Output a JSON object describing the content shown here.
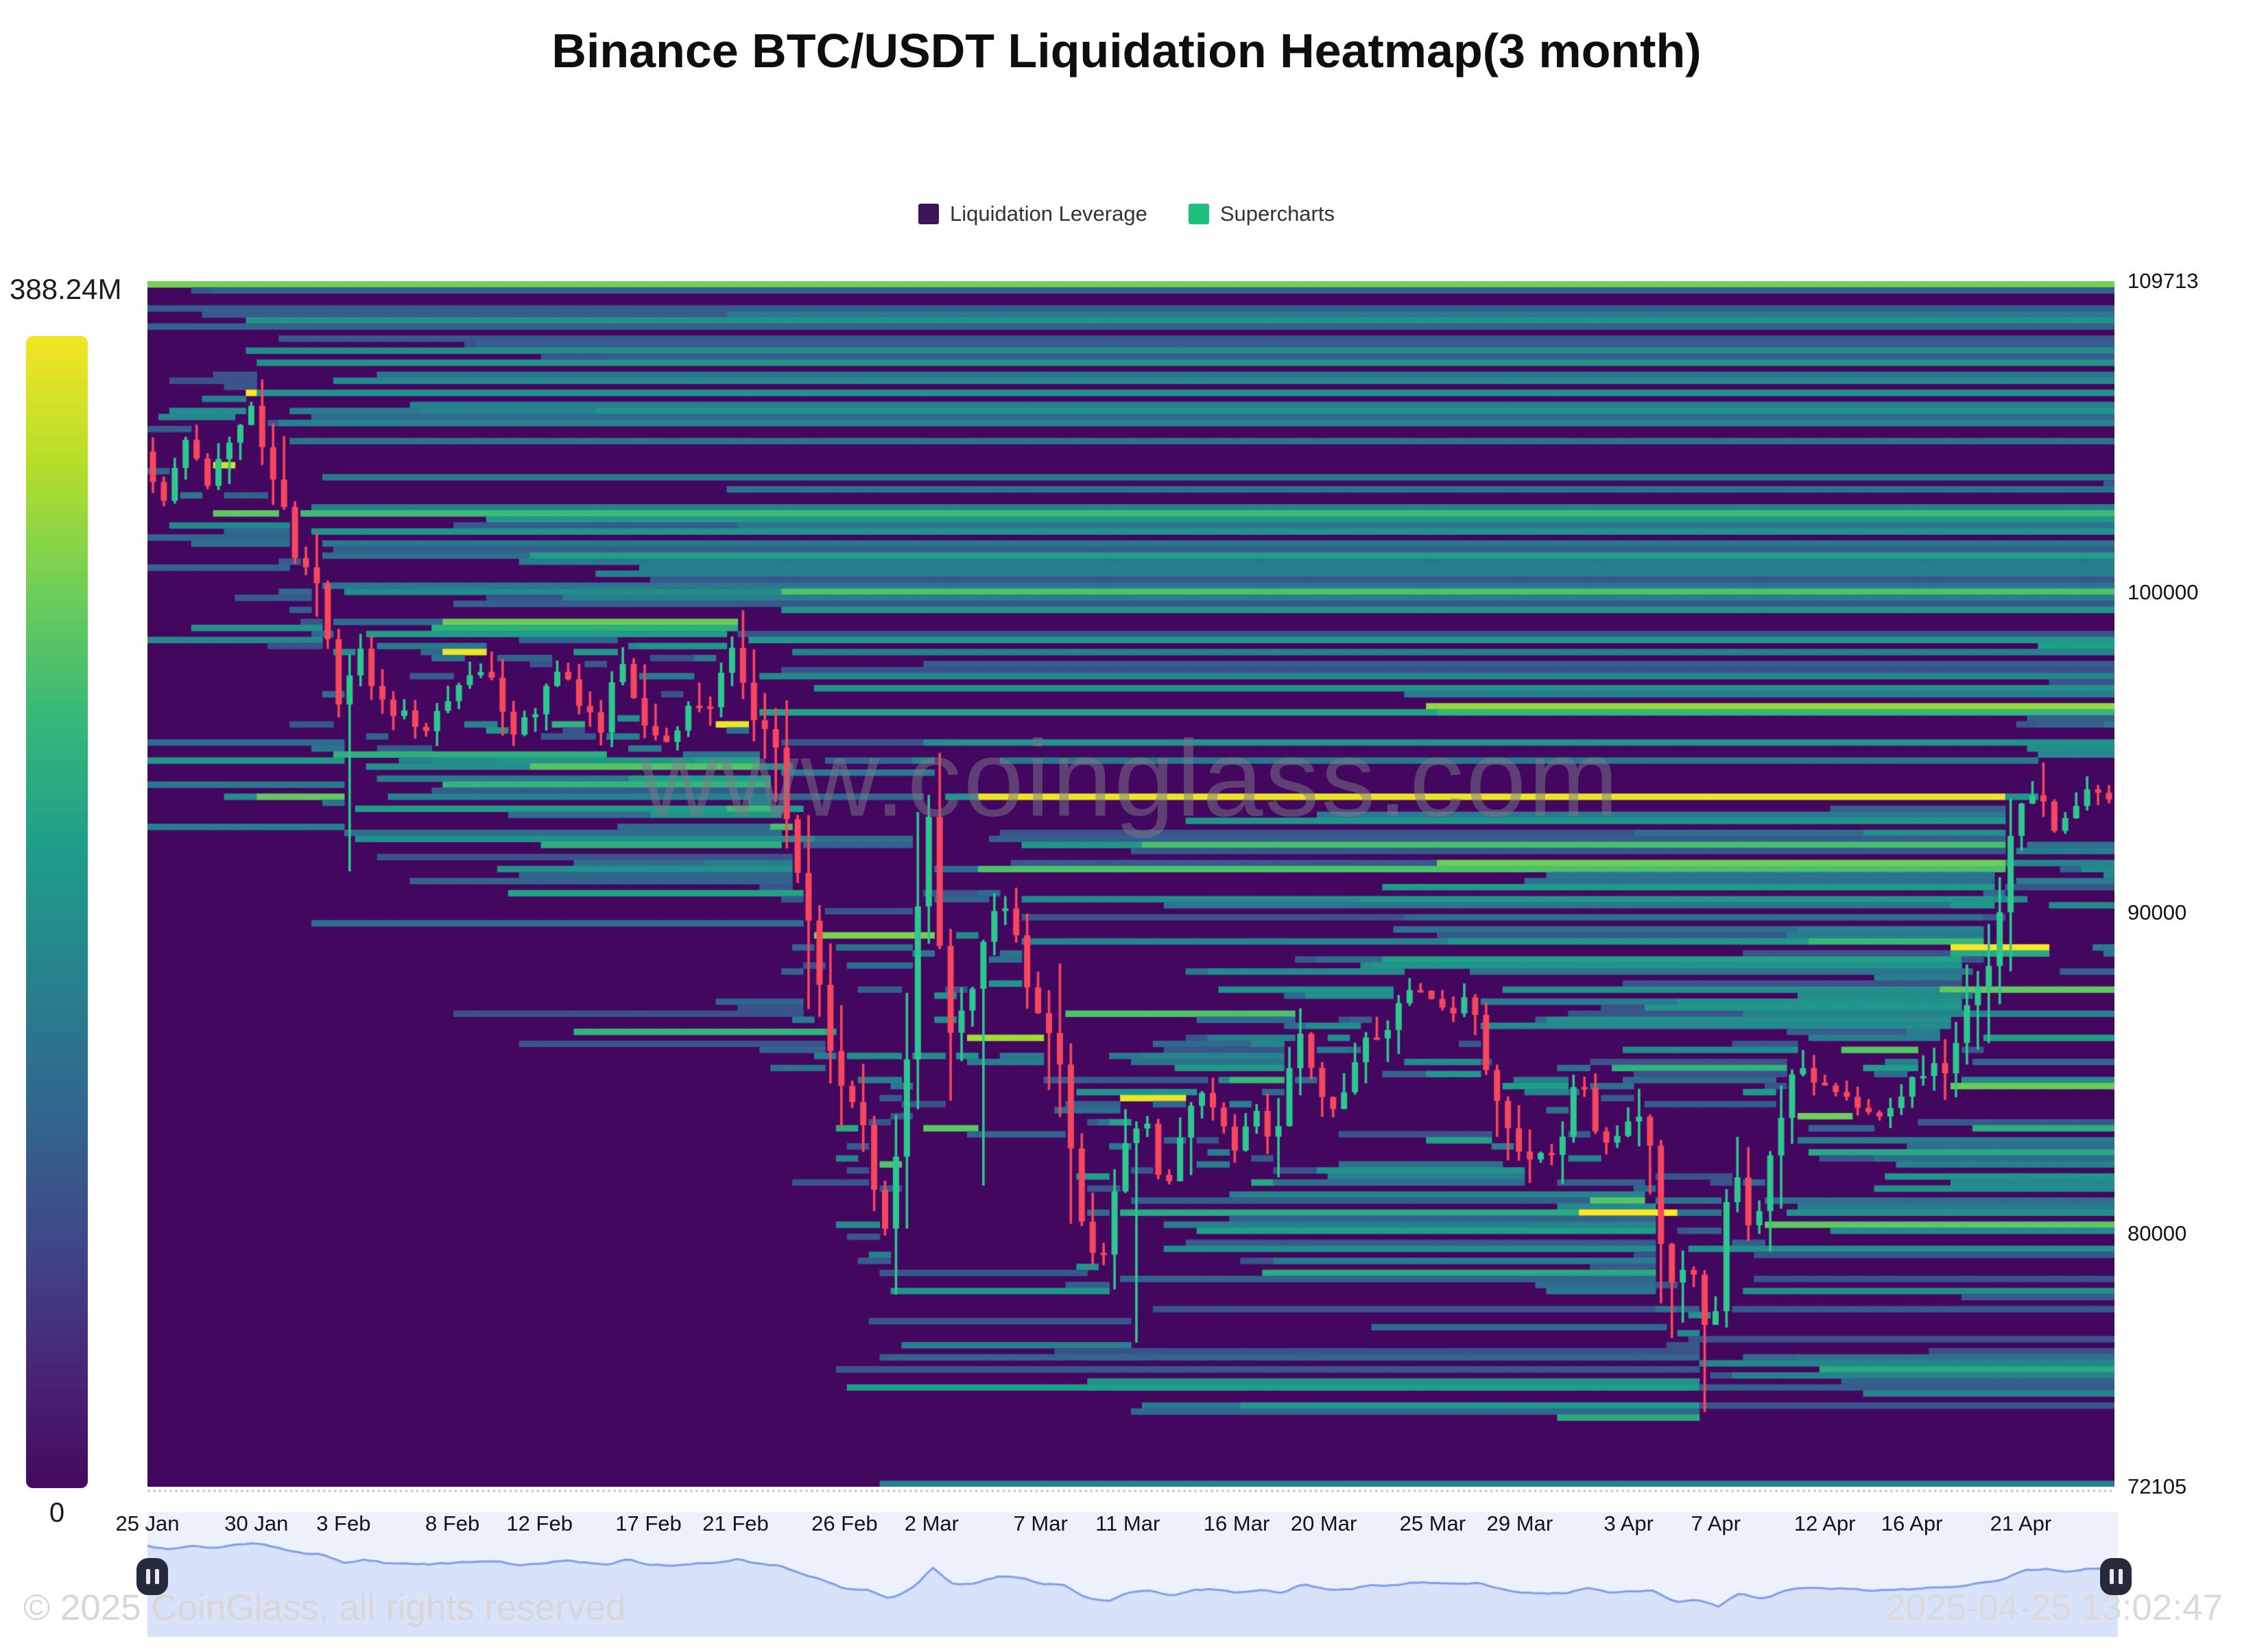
{
  "title": "Binance BTC/USDT Liquidation Heatmap(3 month)",
  "legend": {
    "items": [
      {
        "label": "Liquidation Leverage",
        "color": "#3d1458"
      },
      {
        "label": "Supercharts",
        "color": "#1fc07c"
      }
    ]
  },
  "colorbar": {
    "max_label": "388.24M",
    "min_label": "0"
  },
  "watermark": "www.coinglass.com",
  "footer": {
    "copyright": "© 2025 CoinGlass, all rights reserved",
    "timestamp": "2025-04-25 13:02:47"
  },
  "chart_data": {
    "type": "heatmap",
    "title": "Binance BTC/USDT Liquidation Heatmap(3 month)",
    "palette": "viridis",
    "colorbar_max_label": "388.24M",
    "colorbar_min_label": "0",
    "y_range": [
      72105,
      109713
    ],
    "x_range_days": [
      0,
      90.3
    ],
    "candle_up_color": "#2dc88f",
    "candle_down_color": "#f5475d",
    "y_ticks": [
      {
        "label": "109713",
        "value": 109713
      },
      {
        "label": "100000",
        "value": 100000
      },
      {
        "label": "90000",
        "value": 90000
      },
      {
        "label": "80000",
        "value": 80000
      },
      {
        "label": "72105",
        "value": 72105
      }
    ],
    "x_ticks": [
      {
        "label": "25 Jan",
        "day": 0
      },
      {
        "label": "30 Jan",
        "day": 5
      },
      {
        "label": "3 Feb",
        "day": 9
      },
      {
        "label": "8 Feb",
        "day": 14
      },
      {
        "label": "12 Feb",
        "day": 18
      },
      {
        "label": "17 Feb",
        "day": 23
      },
      {
        "label": "21 Feb",
        "day": 27
      },
      {
        "label": "26 Feb",
        "day": 32
      },
      {
        "label": "2 Mar",
        "day": 36
      },
      {
        "label": "7 Mar",
        "day": 41
      },
      {
        "label": "11 Mar",
        "day": 45
      },
      {
        "label": "16 Mar",
        "day": 50
      },
      {
        "label": "20 Mar",
        "day": 54
      },
      {
        "label": "25 Mar",
        "day": 59
      },
      {
        "label": "29 Mar",
        "day": 63
      },
      {
        "label": "3 Apr",
        "day": 68
      },
      {
        "label": "7 Apr",
        "day": 72
      },
      {
        "label": "12 Apr",
        "day": 77
      },
      {
        "label": "16 Apr",
        "day": 81
      },
      {
        "label": "21 Apr",
        "day": 86
      }
    ],
    "price_path": [
      [
        0,
        104400
      ],
      [
        1,
        102900
      ],
      [
        2,
        104800
      ],
      [
        3,
        103500
      ],
      [
        4,
        104900
      ],
      [
        5,
        105900
      ],
      [
        6,
        103700
      ],
      [
        7,
        101300
      ],
      [
        8,
        100600
      ],
      [
        9,
        96600
      ],
      [
        10,
        98100
      ],
      [
        11,
        96400
      ],
      [
        12,
        96100
      ],
      [
        13,
        95900
      ],
      [
        14,
        96600
      ],
      [
        15,
        97300
      ],
      [
        16,
        97500
      ],
      [
        17,
        95600
      ],
      [
        18,
        96100
      ],
      [
        19,
        97700
      ],
      [
        20,
        96700
      ],
      [
        21,
        95600
      ],
      [
        22,
        98200
      ],
      [
        23,
        95800
      ],
      [
        24,
        95300
      ],
      [
        25,
        96200
      ],
      [
        26,
        96300
      ],
      [
        27,
        98300
      ],
      [
        28,
        96100
      ],
      [
        29,
        95300
      ],
      [
        30,
        91600
      ],
      [
        31,
        88200
      ],
      [
        32,
        84400
      ],
      [
        33,
        84100
      ],
      [
        34,
        79800
      ],
      [
        35,
        84400
      ],
      [
        36,
        94100
      ],
      [
        37,
        86100
      ],
      [
        38,
        87300
      ],
      [
        39,
        90400
      ],
      [
        40,
        89700
      ],
      [
        41,
        86800
      ],
      [
        42,
        86100
      ],
      [
        43,
        80600
      ],
      [
        44,
        78600
      ],
      [
        45,
        82900
      ],
      [
        46,
        83600
      ],
      [
        47,
        81100
      ],
      [
        48,
        83900
      ],
      [
        49,
        84300
      ],
      [
        50,
        82600
      ],
      [
        51,
        84000
      ],
      [
        52,
        82700
      ],
      [
        53,
        86700
      ],
      [
        54,
        84200
      ],
      [
        55,
        84100
      ],
      [
        56,
        86100
      ],
      [
        57,
        86000
      ],
      [
        58,
        87400
      ],
      [
        59,
        87300
      ],
      [
        60,
        86900
      ],
      [
        61,
        87200
      ],
      [
        62,
        84400
      ],
      [
        63,
        82700
      ],
      [
        64,
        82400
      ],
      [
        65,
        82500
      ],
      [
        66,
        85100
      ],
      [
        67,
        82500
      ],
      [
        68,
        83200
      ],
      [
        69,
        83800
      ],
      [
        70,
        78300
      ],
      [
        71,
        79200
      ],
      [
        72,
        76300
      ],
      [
        73,
        82600
      ],
      [
        74,
        79600
      ],
      [
        75,
        83400
      ],
      [
        76,
        85200
      ],
      [
        77,
        84500
      ],
      [
        78,
        84600
      ],
      [
        79,
        83600
      ],
      [
        80,
        84000
      ],
      [
        81,
        84500
      ],
      [
        82,
        85100
      ],
      [
        83,
        85200
      ],
      [
        84,
        87400
      ],
      [
        85,
        88500
      ],
      [
        86,
        93300
      ],
      [
        87,
        93700
      ],
      [
        88,
        92500
      ],
      [
        89,
        93900
      ],
      [
        90,
        93700
      ]
    ],
    "wicks": [
      {
        "d": 5,
        "high": 106650
      },
      {
        "d": 9,
        "low": 91300
      },
      {
        "d": 27,
        "high": 99450
      },
      {
        "d": 34,
        "low": 78100
      },
      {
        "d": 36,
        "high": 95000
      },
      {
        "d": 38,
        "low": 81500
      },
      {
        "d": 45,
        "low": 76600
      },
      {
        "d": 71,
        "low": 74440
      },
      {
        "d": 87,
        "high": 94700
      }
    ],
    "hotspots": [
      {
        "price": 106300,
        "d0": 4.5,
        "d1": 5.25,
        "strength": 1.0
      },
      {
        "price": 103950,
        "d0": 3.1,
        "d1": 3.95,
        "strength": 0.92
      },
      {
        "price": 107100,
        "d0": 5.0,
        "d1": 90.3,
        "strength": 0.5
      },
      {
        "price": 105600,
        "d0": 6.3,
        "d1": 90.3,
        "strength": 0.42
      },
      {
        "price": 104700,
        "d0": 6.6,
        "d1": 90.3,
        "strength": 0.38
      },
      {
        "price": 102600,
        "d0": 7.4,
        "d1": 90.3,
        "strength": 0.45
      },
      {
        "price": 101500,
        "d0": 7.9,
        "d1": 90.3,
        "strength": 0.4
      },
      {
        "price": 100100,
        "d0": 29.2,
        "d1": 90.3,
        "strength": 0.72
      },
      {
        "price": 99500,
        "d0": 29.3,
        "d1": 90.3,
        "strength": 0.52
      },
      {
        "price": 98200,
        "d0": 29.5,
        "d1": 90.3,
        "strength": 0.45
      },
      {
        "price": 96300,
        "d0": 27.9,
        "d1": 90.3,
        "strength": 0.58
      },
      {
        "price": 95300,
        "d0": 36.4,
        "d1": 90.3,
        "strength": 0.5
      },
      {
        "price": 94600,
        "d0": 10.2,
        "d1": 29.8,
        "strength": 0.5
      },
      {
        "price": 93600,
        "d0": 36.5,
        "d1": 86.8,
        "strength": 0.52
      },
      {
        "price": 93300,
        "d0": 9.3,
        "d1": 30.2,
        "strength": 0.55
      },
      {
        "price": 92400,
        "d0": 9.6,
        "d1": 30.5,
        "strength": 0.5
      },
      {
        "price": 90500,
        "d0": 40.3,
        "d1": 86.4,
        "strength": 0.48
      },
      {
        "price": 89300,
        "d0": 30.7,
        "d1": 36.2,
        "strength": 0.8
      },
      {
        "price": 89000,
        "d0": 82.8,
        "d1": 87.5,
        "strength": 1.0
      },
      {
        "price": 88700,
        "d0": 82.8,
        "d1": 87.4,
        "strength": 0.6
      },
      {
        "price": 87600,
        "d0": 82.5,
        "d1": 90.3,
        "strength": 0.75
      },
      {
        "price": 86900,
        "d0": 73.0,
        "d1": 90.3,
        "strength": 0.45
      },
      {
        "price": 80700,
        "d0": 65.8,
        "d1": 70.15,
        "strength": 1.0
      },
      {
        "price": 79500,
        "d0": 70.5,
        "d1": 90.3,
        "strength": 0.5
      },
      {
        "price": 75500,
        "d0": 72.5,
        "d1": 90.3,
        "strength": 0.45
      }
    ]
  }
}
